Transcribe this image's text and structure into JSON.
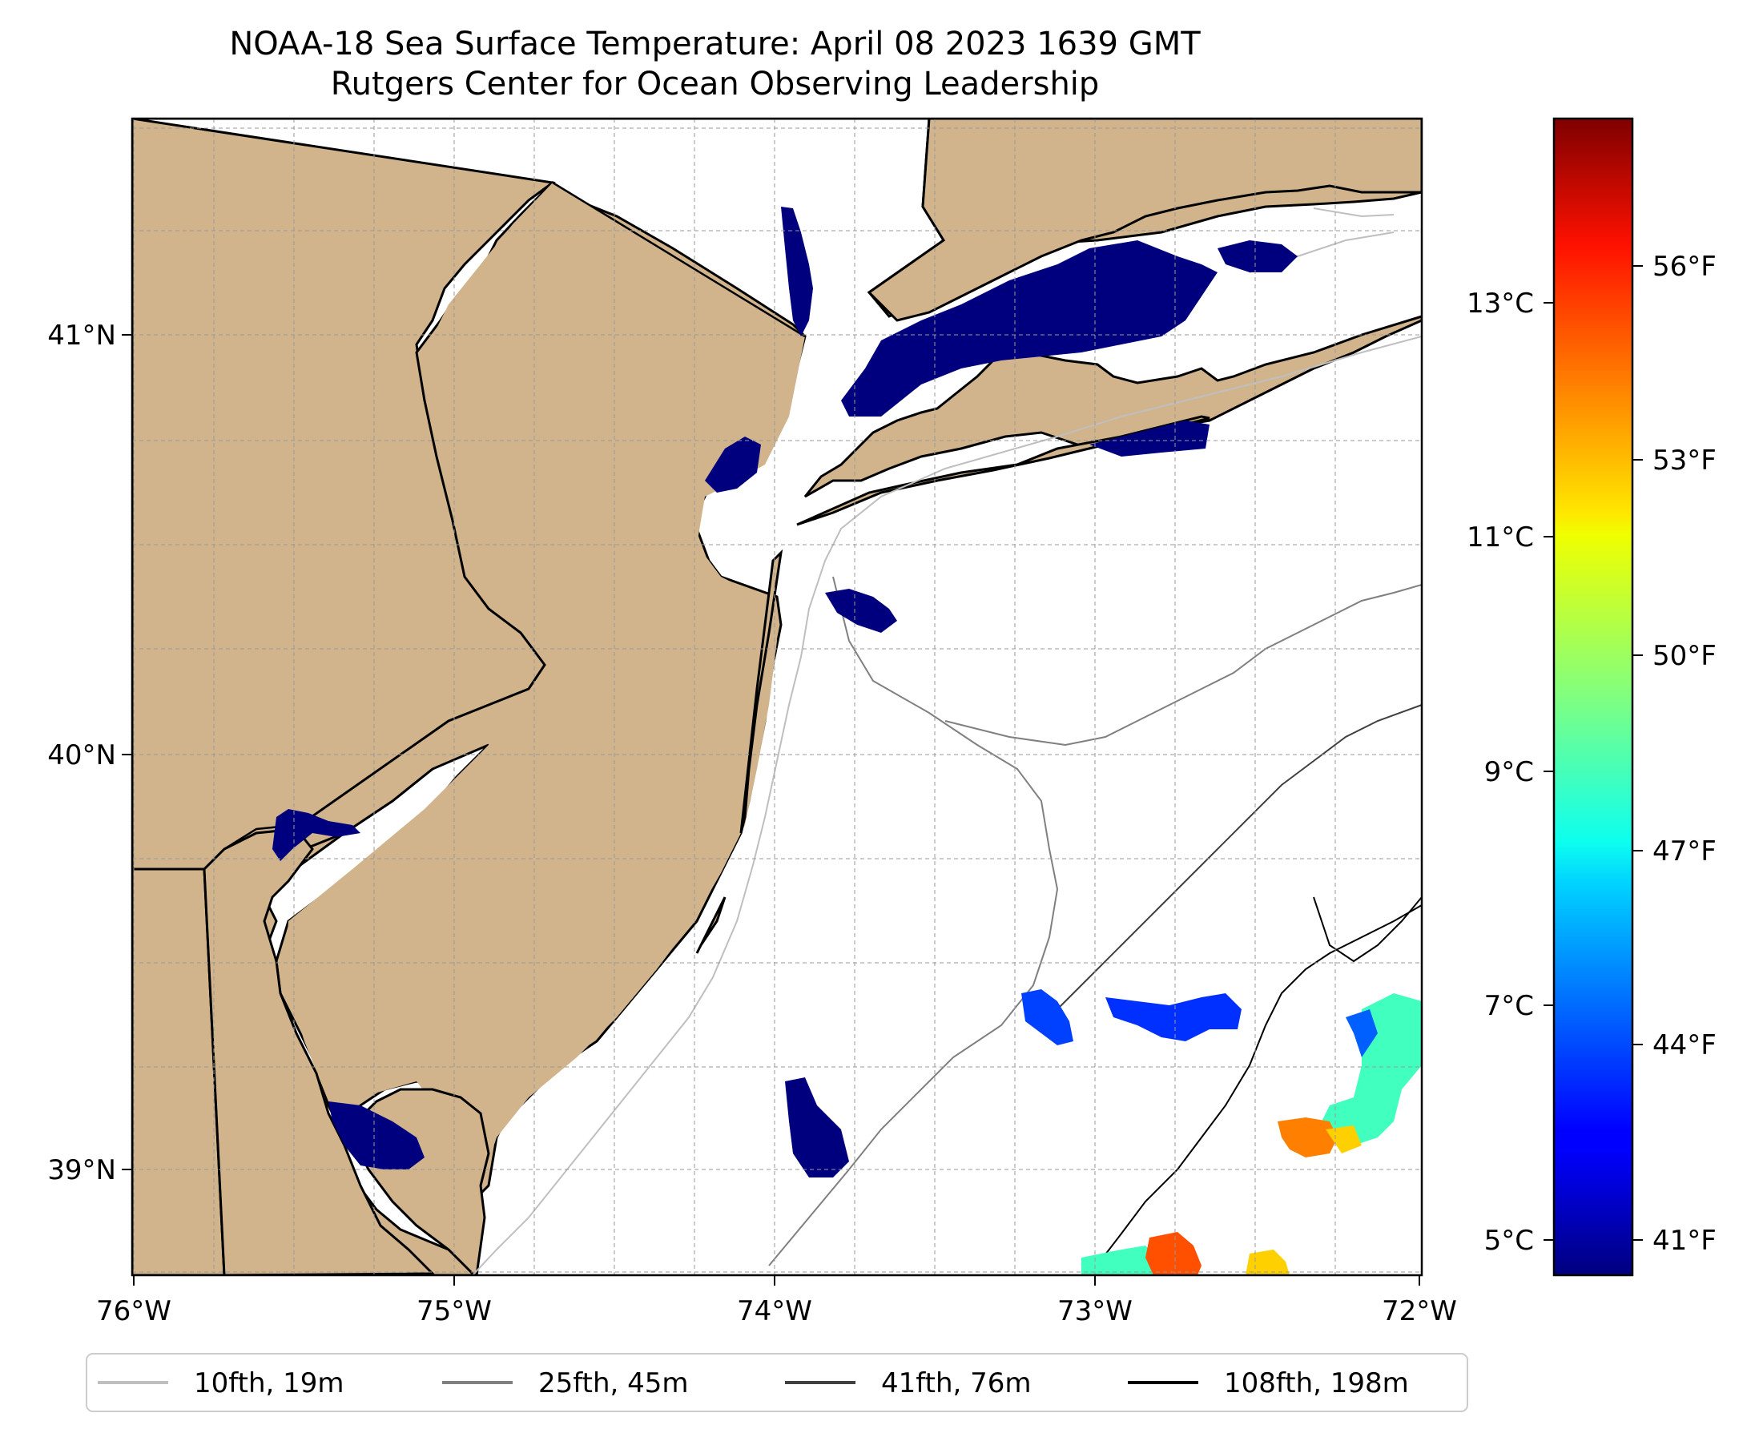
{
  "title": "NOAA-18 Sea Surface Temperature: April 08 2023 1639 GMT",
  "subtitle": "Rutgers Center for Ocean Observing Leadership",
  "map": {
    "lon_range": [
      -76,
      -72
    ],
    "lat_range": [
      38.75,
      41.5
    ],
    "land_color": "#d2b48c",
    "coast_color": "#000000",
    "grid": true,
    "lon_ticks": [
      "76°W",
      "75°W",
      "74°W",
      "73°W",
      "72°W"
    ],
    "lat_ticks": [
      "41°N",
      "40°N",
      "39°N"
    ]
  },
  "colorbar": {
    "colormap": "jet",
    "celsius_ticks": [
      "13°C",
      "11°C",
      "9°C",
      "7°C",
      "5°C"
    ],
    "fahrenheit_ticks": [
      "56°F",
      "53°F",
      "50°F",
      "47°F",
      "44°F",
      "41°F"
    ],
    "range_celsius": [
      4.7,
      14.6
    ]
  },
  "legend": [
    {
      "label": "10fth, 19m",
      "color": "#bfbfbf"
    },
    {
      "label": "25fth, 45m",
      "color": "#808080"
    },
    {
      "label": "41fth, 76m",
      "color": "#404040"
    },
    {
      "label": "108fth, 198m",
      "color": "#000000"
    }
  ]
}
